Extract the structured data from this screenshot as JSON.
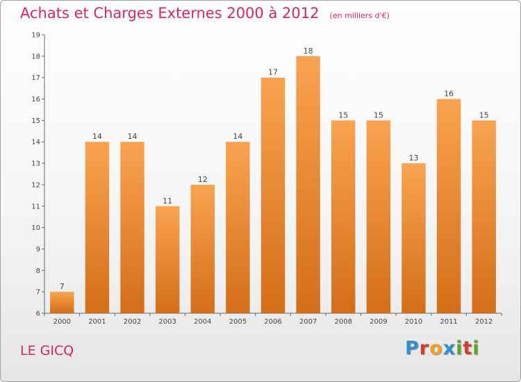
{
  "chart_data": {
    "type": "bar",
    "title": "Achats et Charges Externes 2000 à 2012",
    "unit": "(en milliers d'€)",
    "categories": [
      "2000",
      "2001",
      "2002",
      "2003",
      "2004",
      "2005",
      "2006",
      "2007",
      "2008",
      "2009",
      "2010",
      "2011",
      "2012"
    ],
    "values": [
      7,
      14,
      14,
      11,
      12,
      14,
      17,
      18,
      15,
      15,
      13,
      16,
      15
    ],
    "ylim": [
      6,
      19
    ],
    "yticks": [
      6,
      7,
      8,
      9,
      10,
      11,
      12,
      13,
      14,
      15,
      16,
      17,
      18,
      19
    ],
    "grid": false,
    "legend": "none",
    "colors": {
      "bar_top": "#f9a350",
      "bar_bottom": "#d46e18",
      "title": "#d6245e"
    }
  },
  "footer": {
    "commune": "LE GICQ",
    "logo_letters": [
      {
        "char": "P",
        "color": "#2f8fd0"
      },
      {
        "char": "r",
        "color": "#d63a2a"
      },
      {
        "char": "o",
        "color": "#f0a21a"
      },
      {
        "char": "x",
        "color": "#2f8fd0"
      },
      {
        "char": "i",
        "color": "#5aa62a"
      },
      {
        "char": "t",
        "color": "#d63a2a"
      },
      {
        "char": "i",
        "color": "#5aa62a"
      }
    ]
  }
}
